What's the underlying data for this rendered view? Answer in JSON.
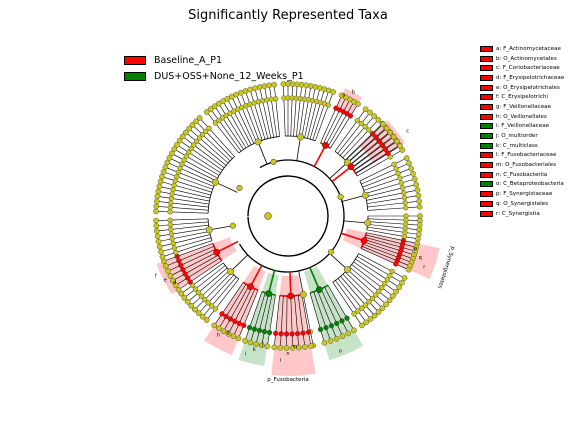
{
  "title": "Significantly Represented Taxa",
  "legend": [
    {
      "label": "Baseline_A_P1",
      "color": "#ff0000"
    },
    {
      "label": "DUS+OSS+None_12_Weeks_P1",
      "color": "#008000"
    }
  ],
  "taxa_legend": [
    {
      "label": "a: F_Actinomycetaceae",
      "color": "#ff0000"
    },
    {
      "label": "b: O_Actinomycetales",
      "color": "#ff0000"
    },
    {
      "label": "c: F_Coriobacteriaceae",
      "color": "#ff0000"
    },
    {
      "label": "d: F_Erysipelotrichaceae",
      "color": "#ff0000"
    },
    {
      "label": "e: O_Erysipelotrichales",
      "color": "#ff0000"
    },
    {
      "label": "f: C_Erysipelotrichi",
      "color": "#ff0000"
    },
    {
      "label": "g: F_Veillonellaceae",
      "color": "#ff0000"
    },
    {
      "label": "h: O_Veillonellales",
      "color": "#ff0000"
    },
    {
      "label": "i: F_Veillonellaceae",
      "color": "#008000"
    },
    {
      "label": "j: O_multiorder",
      "color": "#008000"
    },
    {
      "label": "k: C_multiclass",
      "color": "#008000"
    },
    {
      "label": "l: F_Fusobacteriaceae",
      "color": "#ff0000"
    },
    {
      "label": "m: O_Fusobacteriales",
      "color": "#ff0000"
    },
    {
      "label": "n: C_Fusobacteriia",
      "color": "#ff0000"
    },
    {
      "label": "o: C_Betaproteobacteria",
      "color": "#008000"
    },
    {
      "label": "p: F_Synergistaceae",
      "color": "#ff0000"
    },
    {
      "label": "q: O_Synergistales",
      "color": "#ff0000"
    },
    {
      "label": "r: C_Synergistia",
      "color": "#ff0000"
    }
  ],
  "chart_data": {
    "type": "cladogram",
    "title": "Significantly Represented Taxa",
    "node_colors": {
      "neutral": "#c8c81e",
      "Baseline_A_P1": "#ff0000",
      "DUS+OSS+None_12_Weeks_P1": "#008000"
    },
    "highlight_colors": {
      "Baseline_A_P1": "#ff9999",
      "DUS+OSS+None_12_Weeks_P1": "#99cc99"
    },
    "highlighted_clades": [
      {
        "letter": "a",
        "group": "Baseline_A_P1",
        "angle": -62
      },
      {
        "letter": "b",
        "group": "Baseline_A_P1",
        "angle": -62
      },
      {
        "letter": "c",
        "group": "Baseline_A_P1",
        "angle": -38
      },
      {
        "letter": "d",
        "group": "Baseline_A_P1",
        "angle": 152
      },
      {
        "letter": "e",
        "group": "Baseline_A_P1",
        "angle": 152
      },
      {
        "letter": "f",
        "group": "Baseline_A_P1",
        "angle": 152
      },
      {
        "letter": "g",
        "group": "Baseline_A_P1",
        "angle": 120
      },
      {
        "letter": "h",
        "group": "Baseline_A_P1",
        "angle": 120
      },
      {
        "letter": "i",
        "group": "DUS+OSS+None_12_Weeks_P1",
        "angle": 104
      },
      {
        "letter": "j",
        "group": "DUS+OSS+None_12_Weeks_P1",
        "angle": 104
      },
      {
        "letter": "k",
        "group": "DUS+OSS+None_12_Weeks_P1",
        "angle": 104
      },
      {
        "letter": "l",
        "group": "Baseline_A_P1",
        "angle": 90
      },
      {
        "letter": "m",
        "group": "Baseline_A_P1",
        "angle": 90
      },
      {
        "letter": "n",
        "group": "Baseline_A_P1",
        "angle": 90
      },
      {
        "letter": "o",
        "group": "DUS+OSS+None_12_Weeks_P1",
        "angle": 66
      },
      {
        "letter": "p",
        "group": "Baseline_A_P1",
        "angle": 18
      },
      {
        "letter": "q",
        "group": "Baseline_A_P1",
        "angle": 18
      },
      {
        "letter": "r",
        "group": "Baseline_A_P1",
        "angle": 18
      }
    ],
    "phylum_labels": [
      {
        "text": "p_Fusobacteria",
        "angle": 90
      },
      {
        "text": "p_Synergistetes",
        "angle": 18
      }
    ]
  }
}
